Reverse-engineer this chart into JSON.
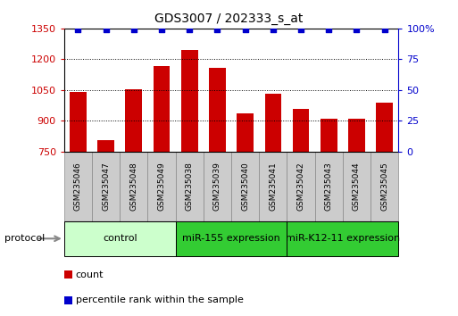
{
  "title": "GDS3007 / 202333_s_at",
  "samples": [
    "GSM235046",
    "GSM235047",
    "GSM235048",
    "GSM235049",
    "GSM235038",
    "GSM235039",
    "GSM235040",
    "GSM235041",
    "GSM235042",
    "GSM235043",
    "GSM235044",
    "GSM235045"
  ],
  "counts": [
    1040,
    808,
    1055,
    1165,
    1245,
    1160,
    935,
    1030,
    960,
    910,
    910,
    990
  ],
  "percentile_ranks": [
    99,
    99,
    99,
    99,
    99,
    99,
    99,
    99,
    99,
    99,
    99,
    99
  ],
  "ylim_left": [
    750,
    1350
  ],
  "ylim_right": [
    0,
    100
  ],
  "yticks_left": [
    750,
    900,
    1050,
    1200,
    1350
  ],
  "yticks_right": [
    0,
    25,
    50,
    75,
    100
  ],
  "ytick_labels_right": [
    "0",
    "25",
    "50",
    "75",
    "100%"
  ],
  "bar_color": "#cc0000",
  "dot_color": "#0000cc",
  "bar_bottom": 750,
  "group_info": [
    {
      "label": "control",
      "start": 0,
      "end": 4,
      "color": "#ccffcc"
    },
    {
      "label": "miR-155 expression",
      "start": 4,
      "end": 8,
      "color": "#33cc33"
    },
    {
      "label": "miR-K12-11 expression",
      "start": 8,
      "end": 12,
      "color": "#33cc33"
    }
  ],
  "legend_count_color": "#cc0000",
  "legend_dot_color": "#0000cc",
  "protocol_label": "protocol",
  "tick_label_color_left": "#cc0000",
  "tick_label_color_right": "#0000cc",
  "sample_box_color": "#cccccc",
  "sample_box_edge": "#888888"
}
